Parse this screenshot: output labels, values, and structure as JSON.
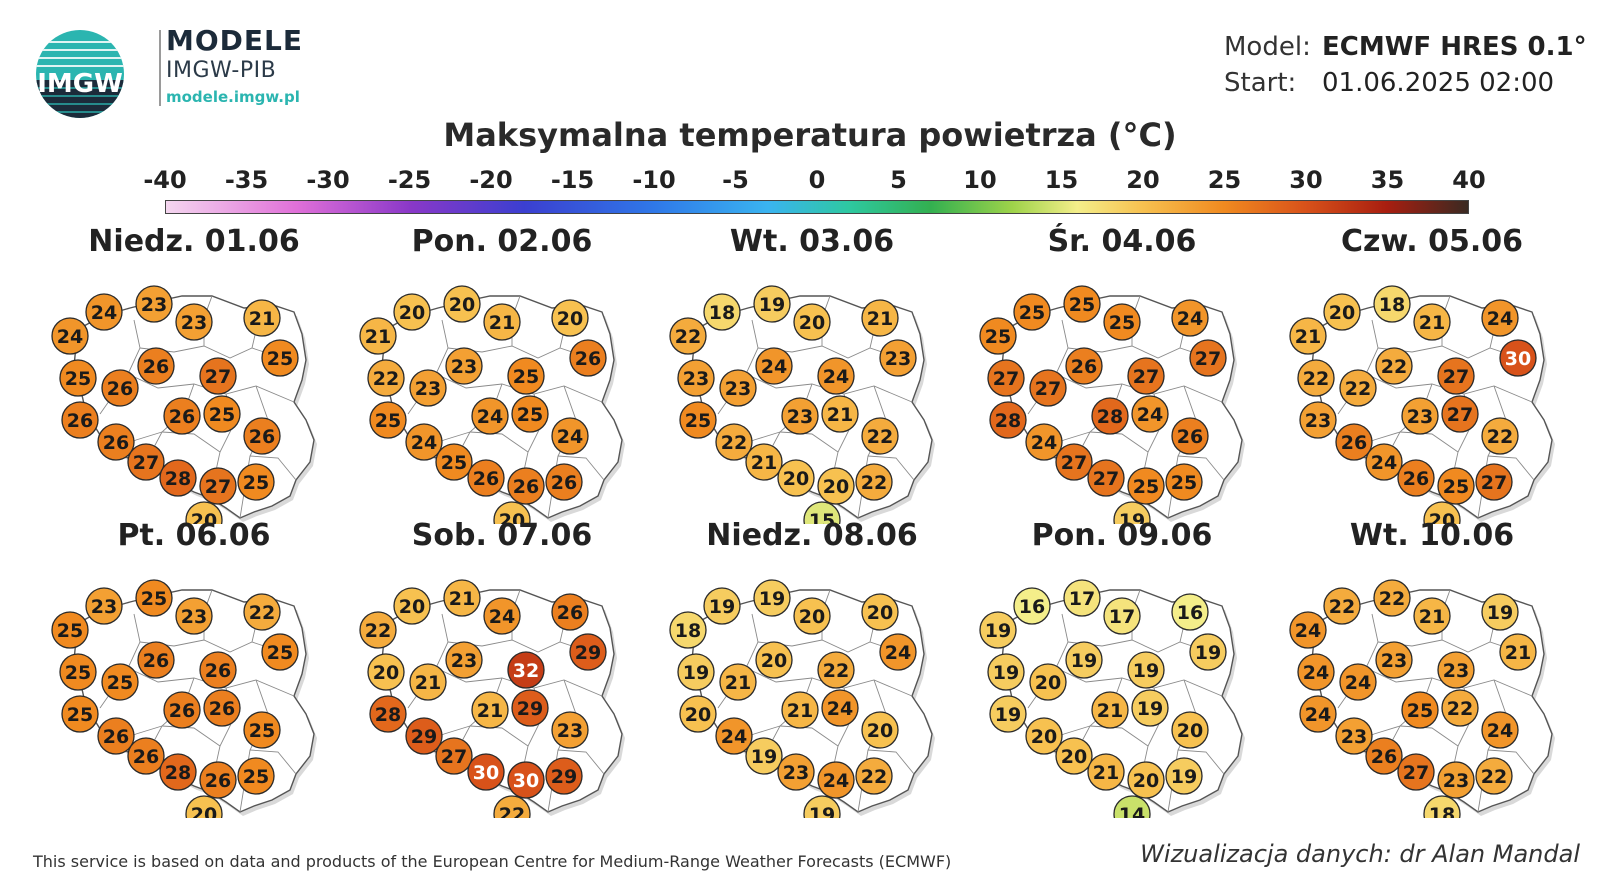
{
  "header": {
    "logo_text": "IMGW",
    "brand_title": "MODELE",
    "brand_subtitle": "IMGW-PIB",
    "brand_url": "modele.imgw.pl",
    "model_label": "Model:",
    "model_value": "ECMWF HRES 0.1°",
    "start_label": "Start:",
    "start_value": "01.06.2025 02:00"
  },
  "title": "Maksymalna temperatura powietrza (°C)",
  "colorbar": {
    "ticks": [
      "-40",
      "-35",
      "-30",
      "-25",
      "-20",
      "-15",
      "-10",
      "-5",
      "0",
      "5",
      "10",
      "15",
      "20",
      "25",
      "30",
      "35",
      "40"
    ],
    "stops": [
      {
        "value": -40,
        "color": "#f4d6ef"
      },
      {
        "value": -32,
        "color": "#e070d8"
      },
      {
        "value": -25,
        "color": "#8a38c8"
      },
      {
        "value": -18,
        "color": "#3b3fd0"
      },
      {
        "value": -10,
        "color": "#2f78e8"
      },
      {
        "value": -3,
        "color": "#3ab4f0"
      },
      {
        "value": 2,
        "color": "#2ec8a0"
      },
      {
        "value": 7,
        "color": "#33b050"
      },
      {
        "value": 12,
        "color": "#9ed34a"
      },
      {
        "value": 16,
        "color": "#f4ee8a"
      },
      {
        "value": 20,
        "color": "#f7c150"
      },
      {
        "value": 25,
        "color": "#f08a20"
      },
      {
        "value": 30,
        "color": "#d8521a"
      },
      {
        "value": 35,
        "color": "#a81e10"
      },
      {
        "value": 40,
        "color": "#3a2a22"
      }
    ]
  },
  "panels": [
    {
      "title": "Niedz. 01.06",
      "values": [
        "24",
        "23",
        "23",
        "21",
        "24",
        "25",
        "26",
        "25",
        "26",
        "27",
        "26",
        "26",
        "26",
        "25",
        "26",
        "27",
        "28",
        "27",
        "25",
        "20"
      ]
    },
    {
      "title": "Pon. 02.06",
      "values": [
        "20",
        "20",
        "21",
        "20",
        "21",
        "26",
        "23",
        "22",
        "23",
        "25",
        "25",
        "24",
        "24",
        "25",
        "24",
        "25",
        "26",
        "26",
        "26",
        "20"
      ]
    },
    {
      "title": "Wt. 03.06",
      "values": [
        "18",
        "19",
        "20",
        "21",
        "22",
        "23",
        "24",
        "23",
        "23",
        "24",
        "25",
        "23",
        "22",
        "21",
        "22",
        "21",
        "20",
        "20",
        "22",
        "15"
      ]
    },
    {
      "title": "Śr. 04.06",
      "values": [
        "25",
        "25",
        "25",
        "24",
        "25",
        "27",
        "26",
        "27",
        "27",
        "27",
        "28",
        "28",
        "24",
        "24",
        "26",
        "27",
        "27",
        "25",
        "25",
        "19"
      ]
    },
    {
      "title": "Czw. 05.06",
      "values": [
        "20",
        "18",
        "21",
        "24",
        "21",
        "30",
        "22",
        "22",
        "22",
        "27",
        "23",
        "23",
        "26",
        "27",
        "22",
        "24",
        "26",
        "25",
        "27",
        "20"
      ]
    },
    {
      "title": "Pt. 06.06",
      "values": [
        "23",
        "25",
        "23",
        "22",
        "25",
        "25",
        "26",
        "25",
        "25",
        "26",
        "25",
        "26",
        "26",
        "26",
        "25",
        "26",
        "28",
        "26",
        "25",
        "20"
      ]
    },
    {
      "title": "Sob. 07.06",
      "values": [
        "20",
        "21",
        "24",
        "26",
        "22",
        "29",
        "23",
        "20",
        "21",
        "32",
        "28",
        "21",
        "29",
        "29",
        "23",
        "27",
        "30",
        "30",
        "29",
        "22"
      ]
    },
    {
      "title": "Niedz. 08.06",
      "values": [
        "19",
        "19",
        "20",
        "20",
        "18",
        "24",
        "20",
        "19",
        "21",
        "22",
        "20",
        "21",
        "24",
        "24",
        "20",
        "19",
        "23",
        "24",
        "22",
        "19"
      ]
    },
    {
      "title": "Pon. 09.06",
      "values": [
        "16",
        "17",
        "17",
        "16",
        "19",
        "19",
        "19",
        "19",
        "20",
        "19",
        "19",
        "21",
        "20",
        "19",
        "20",
        "20",
        "21",
        "20",
        "19",
        "14"
      ]
    },
    {
      "title": "Wt. 10.06",
      "values": [
        "22",
        "22",
        "21",
        "19",
        "24",
        "21",
        "23",
        "24",
        "24",
        "23",
        "24",
        "25",
        "23",
        "22",
        "24",
        "26",
        "27",
        "23",
        "22",
        "18"
      ]
    }
  ],
  "footer": {
    "credit": "This service is based on data and products of the European Centre for Medium-Range Weather Forecasts (ECMWF)",
    "author": "Wizualizacja danych: dr Alan Mandal"
  }
}
